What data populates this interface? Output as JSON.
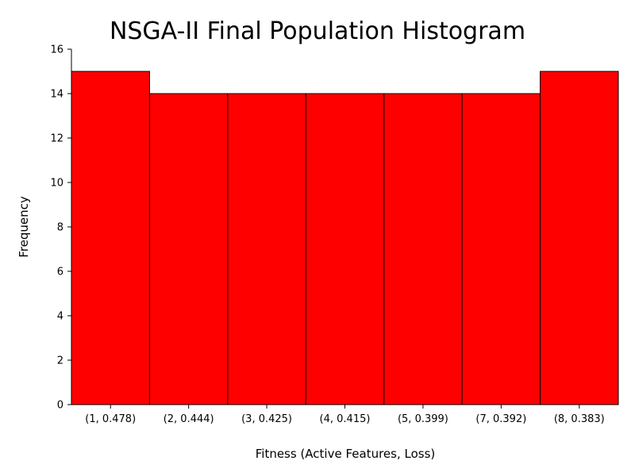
{
  "chart_data": {
    "type": "bar",
    "title": "NSGA-II Final Population Histogram",
    "xlabel": "Fitness (Active Features, Loss)",
    "ylabel": "Frequency",
    "categories": [
      "(1, 0.478)",
      "(2, 0.444)",
      "(3, 0.425)",
      "(4, 0.415)",
      "(5, 0.399)",
      "(7, 0.392)",
      "(8, 0.383)"
    ],
    "values": [
      15,
      14,
      14,
      14,
      14,
      14,
      15
    ],
    "ylim": [
      0,
      16
    ],
    "yticks": [
      0,
      2,
      4,
      6,
      8,
      10,
      12,
      14,
      16
    ],
    "grid": false,
    "bar_color": "#ff0000",
    "edge_color": "#000000"
  }
}
